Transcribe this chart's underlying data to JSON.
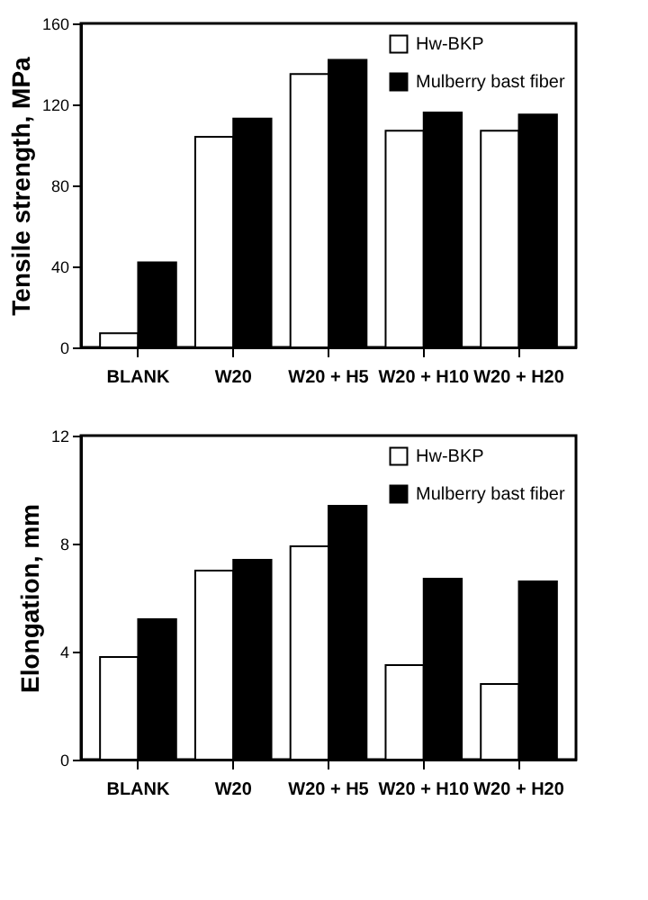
{
  "chart_data": [
    {
      "type": "bar",
      "ylabel": "Tensile strength, MPa",
      "categories": [
        "BLANK",
        "W20",
        "W20 + H5",
        "W20 + H10",
        "W20 + H20"
      ],
      "series": [
        {
          "name": "Hw-BKP",
          "color": "#ffffff",
          "values": [
            7,
            104,
            135,
            107,
            107
          ]
        },
        {
          "name": "Mulberry bast fiber",
          "color": "#000000",
          "values": [
            42,
            113,
            142,
            116,
            115
          ]
        }
      ],
      "ylim": [
        0,
        160
      ],
      "yticks": [
        0,
        40,
        80,
        120,
        160
      ],
      "grid": false,
      "legend": "top right"
    },
    {
      "type": "bar",
      "ylabel": "Elongation, mm",
      "categories": [
        "BLANK",
        "W20",
        "W20 + H5",
        "W20 + H10",
        "W20 + H20"
      ],
      "series": [
        {
          "name": "Hw-BKP",
          "color": "#ffffff",
          "values": [
            3.8,
            7.0,
            7.9,
            3.5,
            2.8
          ]
        },
        {
          "name": "Mulberry bast fiber",
          "color": "#000000",
          "values": [
            5.2,
            7.4,
            9.4,
            6.7,
            6.6
          ]
        }
      ],
      "ylim": [
        0,
        12
      ],
      "yticks": [
        0,
        4,
        8,
        12
      ],
      "grid": false,
      "legend": "top right"
    }
  ]
}
